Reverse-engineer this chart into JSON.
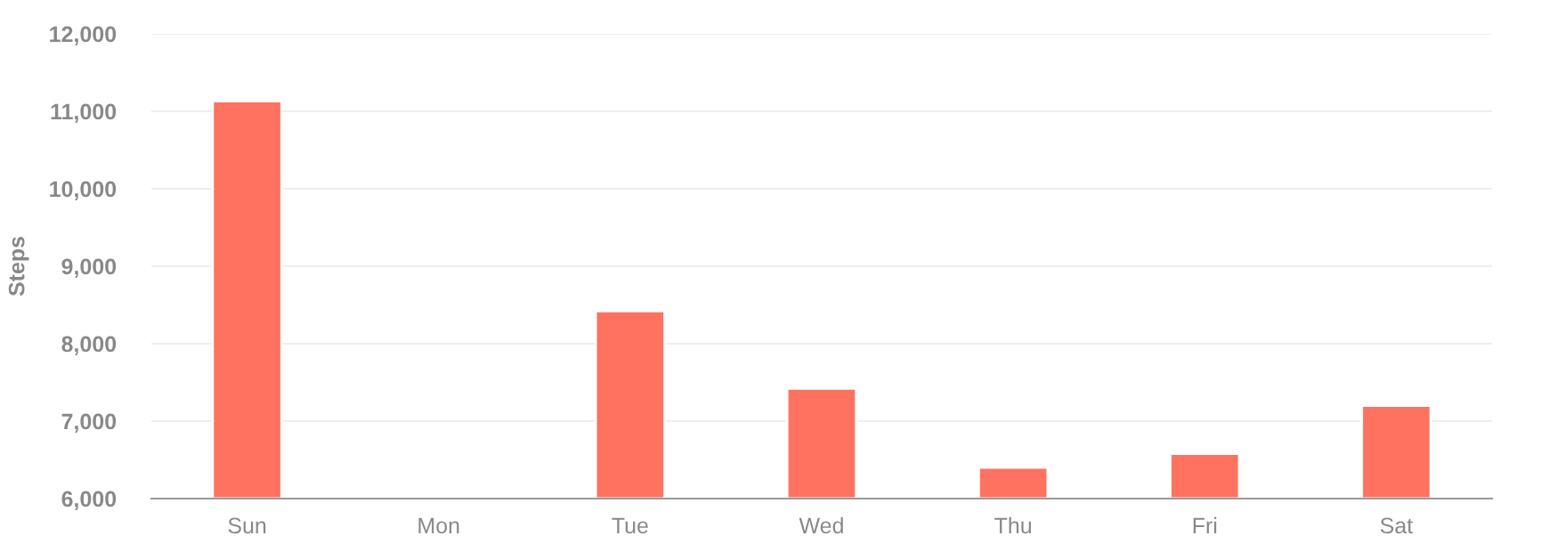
{
  "chart_data": {
    "type": "bar",
    "ylabel": "Steps",
    "categories": [
      "Sun",
      "Mon",
      "Tue",
      "Wed",
      "Thu",
      "Fri",
      "Sat"
    ],
    "values": [
      11130,
      null,
      8420,
      7420,
      6400,
      6580,
      7200
    ],
    "color": "#ff7260",
    "ylim": [
      6000,
      12000
    ],
    "yticks": [
      {
        "value": 6000,
        "label": "6,000"
      },
      {
        "value": 7000,
        "label": "7,000"
      },
      {
        "value": 8000,
        "label": "8,000"
      },
      {
        "value": 9000,
        "label": "9,000"
      },
      {
        "value": 10000,
        "label": "10,000"
      },
      {
        "value": 11000,
        "label": "11,000"
      },
      {
        "value": 12000,
        "label": "12,000"
      }
    ],
    "grid": "y"
  }
}
